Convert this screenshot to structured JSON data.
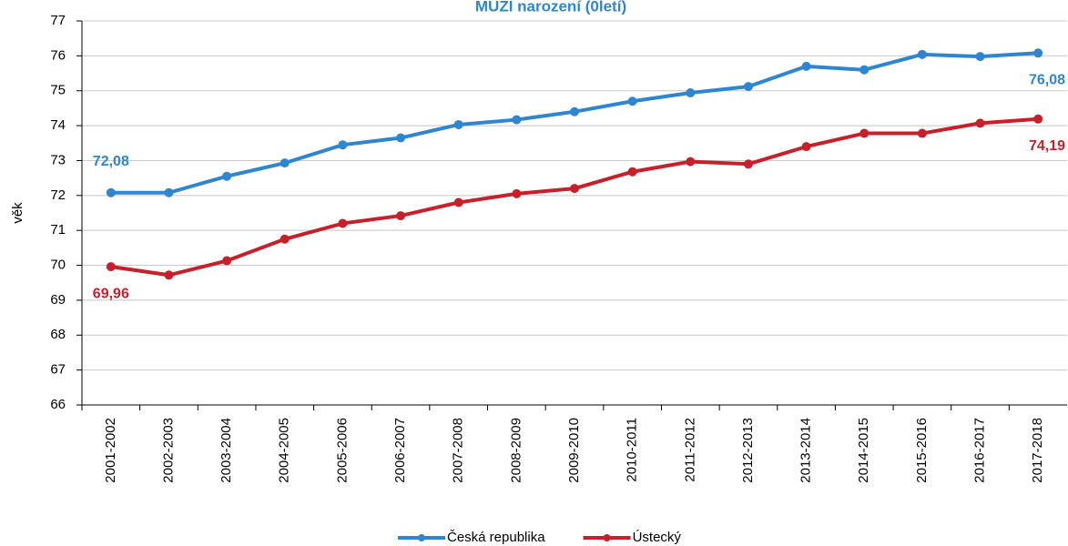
{
  "chart_data": {
    "type": "line",
    "title": "MUŽI narození (0letí)",
    "y_label": "věk",
    "categories": [
      "2001-2002",
      "2002-2003",
      "2003-2004",
      "2004-2005",
      "2005-2006",
      "2006-2007",
      "2007-2008",
      "2008-2009",
      "2009-2010",
      "2010-2011",
      "2011-2012",
      "2012-2013",
      "2013-2014",
      "2014-2015",
      "2015-2016",
      "2016-2017",
      "2017-2018"
    ],
    "series": [
      {
        "name": "Česká republika",
        "color": "#2e86d0",
        "values": [
          72.08,
          72.08,
          72.55,
          72.93,
          73.45,
          73.65,
          74.03,
          74.17,
          74.4,
          74.7,
          74.94,
          75.12,
          75.7,
          75.6,
          76.04,
          75.98,
          76.08
        ],
        "value_labels": [
          "72,08",
          null,
          null,
          null,
          null,
          null,
          null,
          null,
          null,
          null,
          null,
          null,
          null,
          null,
          null,
          null,
          "76,08"
        ]
      },
      {
        "name": "Ústecký",
        "color": "#c8202a",
        "values": [
          69.96,
          69.72,
          70.13,
          70.75,
          71.2,
          71.42,
          71.8,
          72.05,
          72.2,
          72.68,
          72.97,
          72.9,
          73.4,
          73.78,
          73.78,
          74.07,
          74.19
        ],
        "value_labels": [
          "69,96",
          null,
          null,
          null,
          null,
          null,
          null,
          null,
          null,
          null,
          null,
          null,
          null,
          null,
          null,
          null,
          "74,19"
        ]
      }
    ],
    "ylim": [
      66,
      77
    ],
    "yticks": [
      66,
      67,
      68,
      69,
      70,
      71,
      72,
      73,
      74,
      75,
      76,
      77
    ],
    "grid": true,
    "legend": "bottom"
  }
}
